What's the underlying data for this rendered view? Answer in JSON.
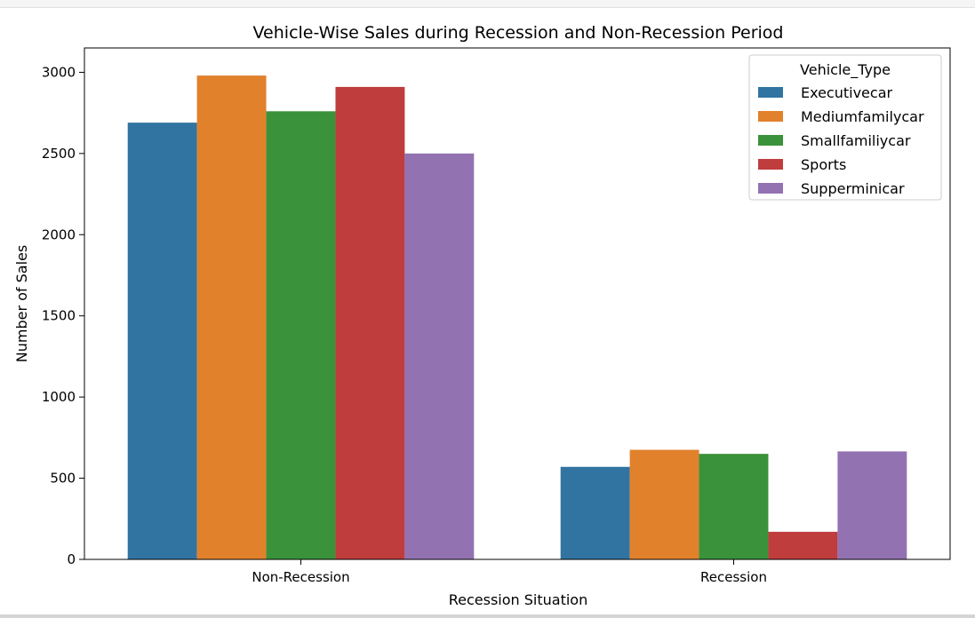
{
  "chart_data": {
    "type": "bar",
    "title": "Vehicle-Wise Sales during Recession and Non-Recession Period",
    "xlabel": "Recession Situation",
    "ylabel": "Number of Sales",
    "categories": [
      "Non-Recession",
      "Recession"
    ],
    "ylim": [
      0,
      3150
    ],
    "yticks": [
      0,
      500,
      1000,
      1500,
      2000,
      2500,
      3000
    ],
    "grid": false,
    "legend": {
      "title": "Vehicle_Type",
      "placement": "top-right"
    },
    "series": [
      {
        "name": "Executivecar",
        "color": "#3274a1",
        "values": [
          2690,
          570
        ]
      },
      {
        "name": "Mediumfamilycar",
        "color": "#e1812c",
        "values": [
          2980,
          675
        ]
      },
      {
        "name": "Smallfamiliycar",
        "color": "#3a923a",
        "values": [
          2760,
          650
        ]
      },
      {
        "name": "Sports",
        "color": "#c03d3e",
        "values": [
          2910,
          170
        ]
      },
      {
        "name": "Supperminicar",
        "color": "#9372b2",
        "values": [
          2500,
          665
        ]
      }
    ]
  }
}
